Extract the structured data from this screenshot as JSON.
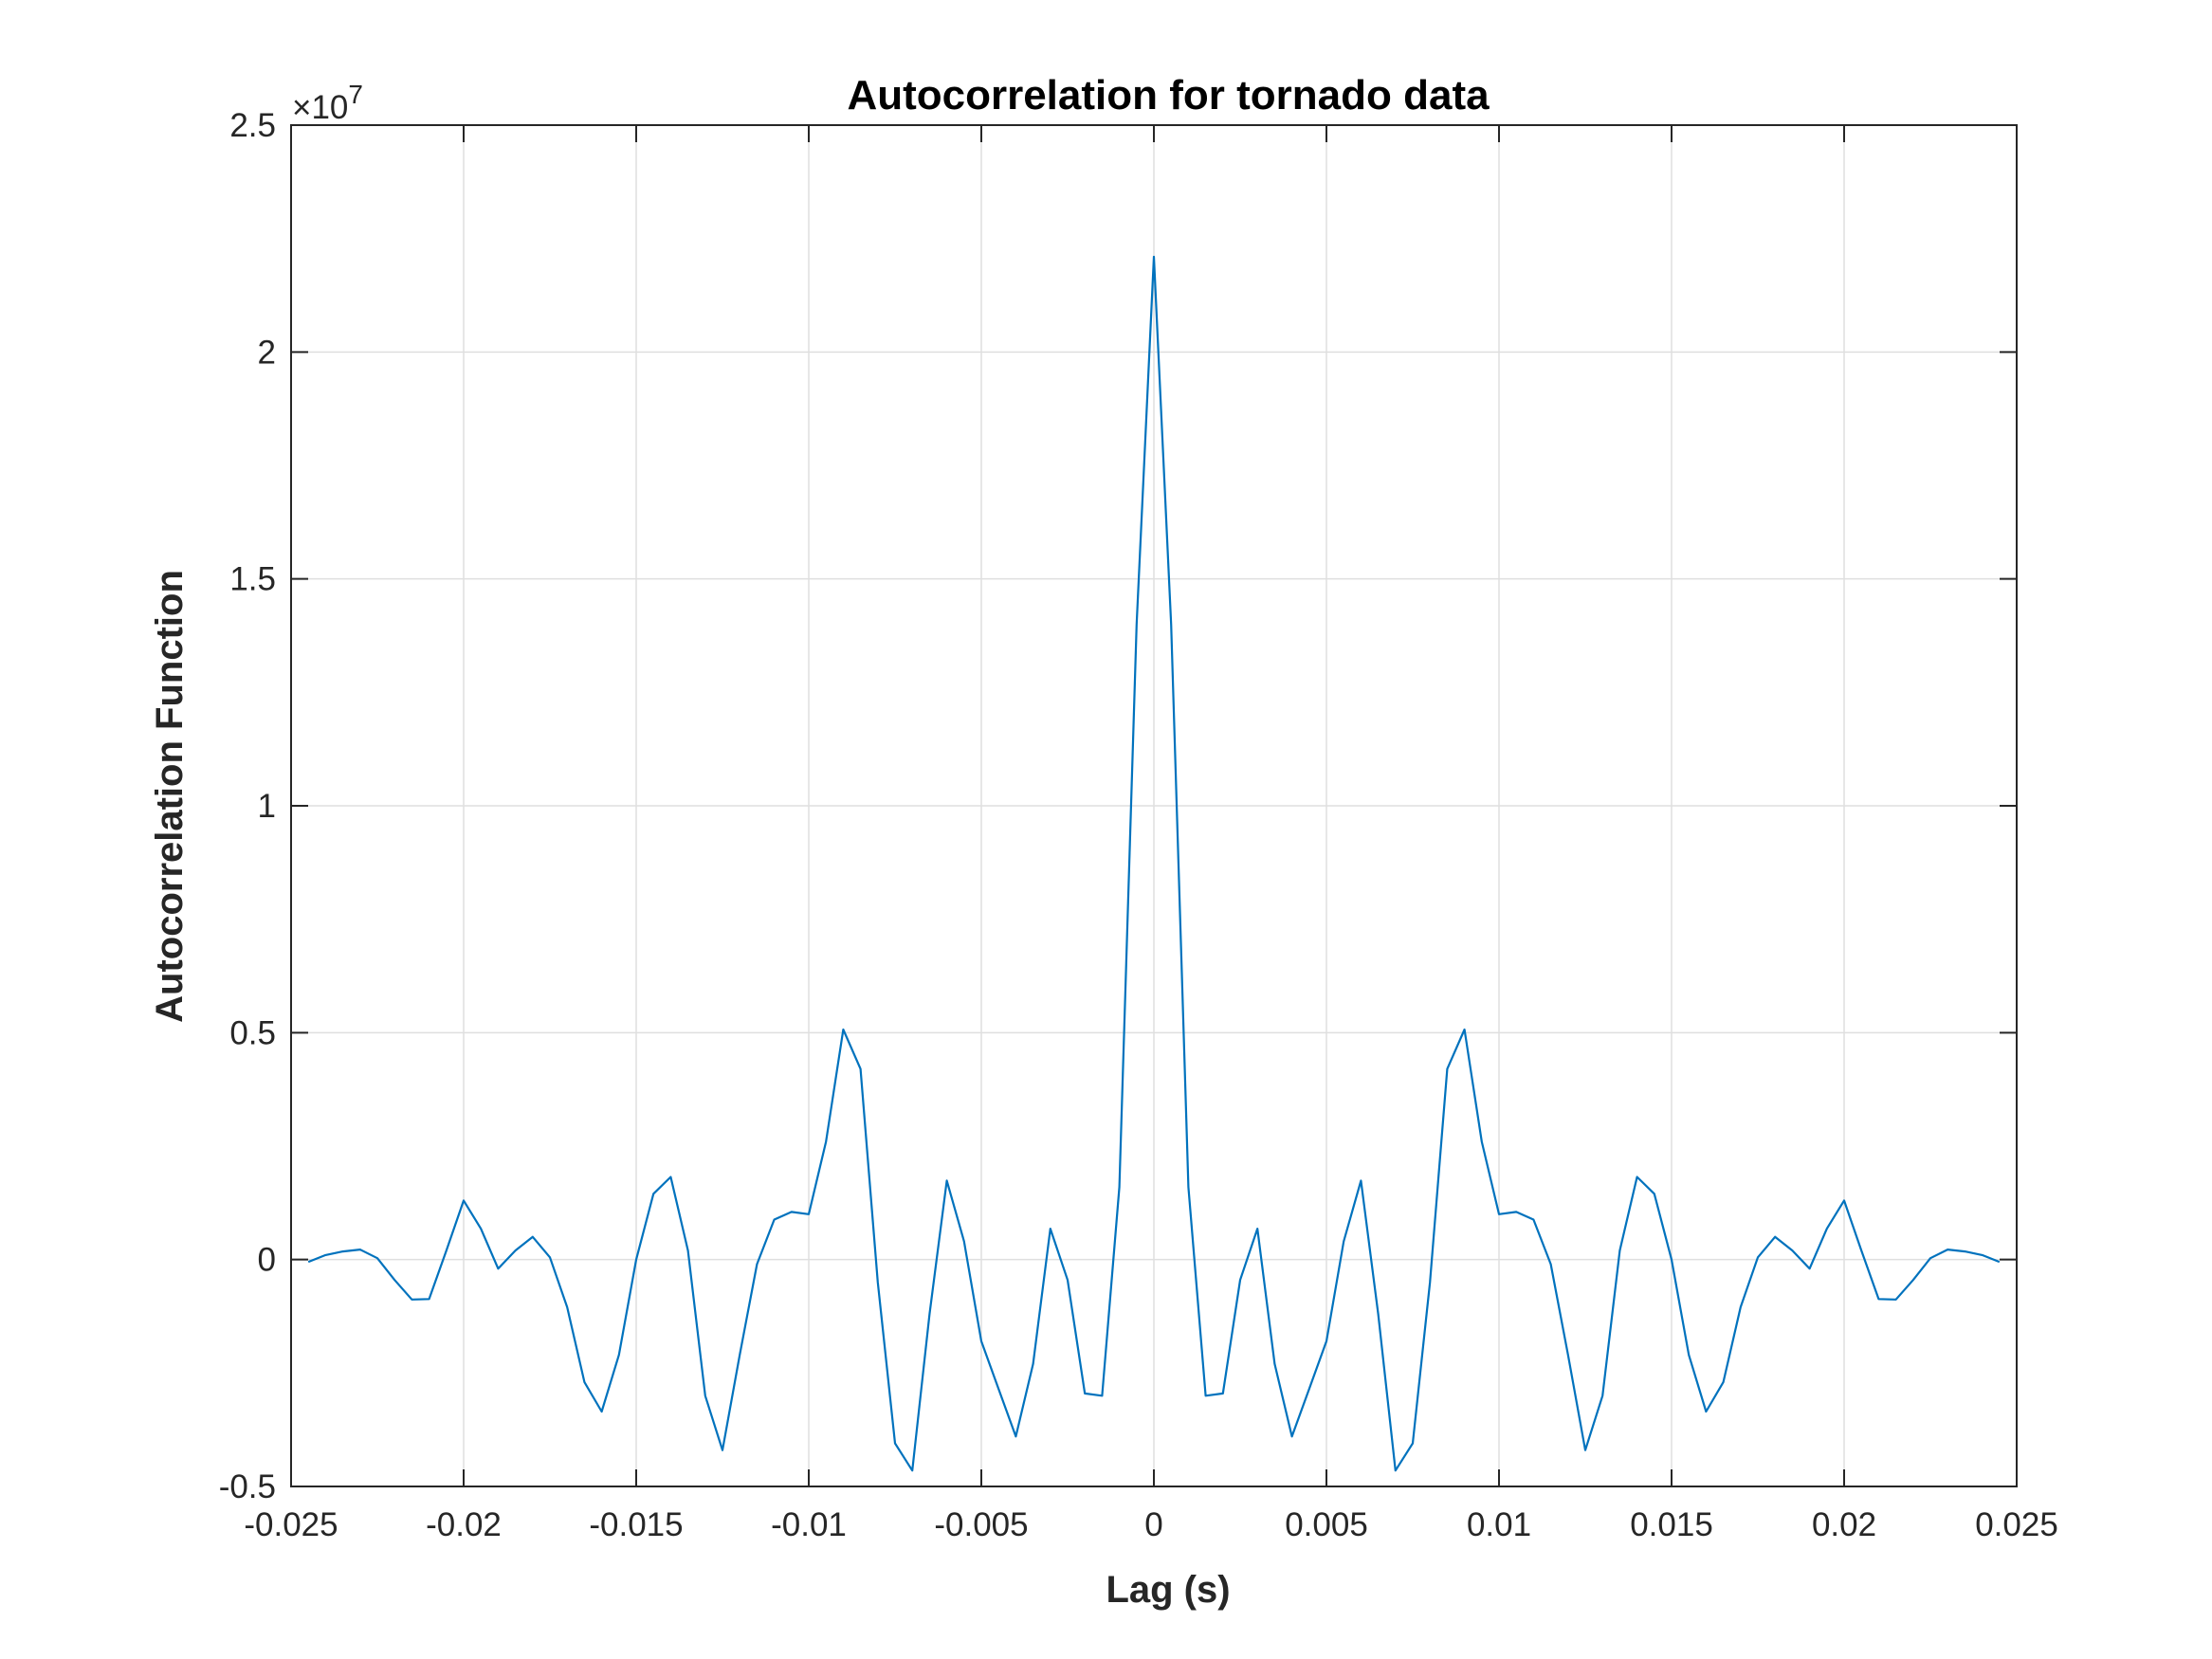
{
  "chart_data": {
    "type": "line",
    "title": "Autocorrelation for tornado data",
    "xlabel": "Lag (s)",
    "ylabel": "Autocorrelation Function",
    "y_exponent_label": "×10",
    "y_exponent_power": "7",
    "y_multiplier": 10000000,
    "xlim": [
      -0.025,
      0.025
    ],
    "ylim": [
      -0.5,
      2.5
    ],
    "x_ticks": [
      -0.025,
      -0.02,
      -0.015,
      -0.01,
      -0.005,
      0,
      0.005,
      0.01,
      0.015,
      0.02,
      0.025
    ],
    "x_tick_labels": [
      "-0.025",
      "-0.02",
      "-0.015",
      "-0.01",
      "-0.005",
      "0",
      "0.005",
      "0.01",
      "0.015",
      "0.02",
      "0.025"
    ],
    "y_ticks": [
      -0.5,
      0,
      0.5,
      1,
      1.5,
      2,
      2.5
    ],
    "y_tick_labels": [
      "-0.5",
      "0",
      "0.5",
      "1",
      "1.5",
      "2",
      "2.5"
    ],
    "grid": true,
    "line_color": "#0072BD",
    "series": [
      {
        "x": [
          -0.0245,
          -0.024,
          -0.0235,
          -0.023,
          -0.0225,
          -0.022,
          -0.0215,
          -0.021,
          -0.0205,
          -0.02,
          -0.0195,
          -0.019,
          -0.0185,
          -0.018,
          -0.0175,
          -0.017,
          -0.0165,
          -0.016,
          -0.0155,
          -0.015,
          -0.0145,
          -0.014,
          -0.0135,
          -0.013,
          -0.0125,
          -0.012,
          -0.0115,
          -0.011,
          -0.0105,
          -0.01,
          -0.0095,
          -0.009,
          -0.0085,
          -0.008,
          -0.0075,
          -0.007,
          -0.0065,
          -0.006,
          -0.0055,
          -0.005,
          -0.0045,
          -0.004,
          -0.0035,
          -0.003,
          -0.0025,
          -0.002,
          -0.0015,
          -0.001,
          -0.0005,
          0,
          0.0005,
          0.001,
          0.0015,
          0.002,
          0.0025,
          0.003,
          0.0035,
          0.004,
          0.0045,
          0.005,
          0.0055,
          0.006,
          0.0065,
          0.007,
          0.0075,
          0.008,
          0.0085,
          0.009,
          0.0095,
          0.01,
          0.0105,
          0.011,
          0.0115,
          0.012,
          0.0125,
          0.013,
          0.0135,
          0.014,
          0.0145,
          0.015,
          0.0155,
          0.016,
          0.0165,
          0.017,
          0.0175,
          0.018,
          0.0185,
          0.019,
          0.0195,
          0.02,
          0.0205,
          0.021,
          0.0215,
          0.022,
          0.0225,
          0.023,
          0.0235,
          0.024,
          0.0245
        ],
        "y": [
          -0.005,
          0.01,
          0.018,
          0.022,
          0.003,
          -0.045,
          -0.088,
          -0.087,
          0.02,
          0.13,
          0.068,
          -0.02,
          0.02,
          0.05,
          0.005,
          -0.105,
          -0.27,
          -0.335,
          -0.21,
          0.0,
          0.145,
          0.182,
          0.02,
          -0.3,
          -0.42,
          -0.21,
          -0.01,
          0.088,
          0.105,
          0.1,
          0.26,
          0.507,
          0.42,
          -0.05,
          -0.405,
          -0.465,
          -0.12,
          0.174,
          0.04,
          -0.18,
          -0.285,
          -0.39,
          -0.23,
          0.068,
          -0.045,
          -0.295,
          -0.3,
          0.16,
          1.4,
          2.21,
          1.4,
          0.16,
          -0.3,
          -0.295,
          -0.045,
          0.068,
          -0.23,
          -0.39,
          -0.285,
          -0.18,
          0.04,
          0.174,
          -0.12,
          -0.465,
          -0.405,
          -0.05,
          0.42,
          0.507,
          0.26,
          0.1,
          0.105,
          0.088,
          -0.01,
          -0.21,
          -0.42,
          -0.3,
          0.02,
          0.182,
          0.145,
          0.0,
          -0.21,
          -0.335,
          -0.27,
          -0.105,
          0.005,
          0.05,
          0.02,
          -0.02,
          0.068,
          0.13,
          0.02,
          -0.087,
          -0.088,
          -0.045,
          0.003,
          0.022,
          0.018,
          0.01,
          -0.005
        ]
      }
    ]
  }
}
